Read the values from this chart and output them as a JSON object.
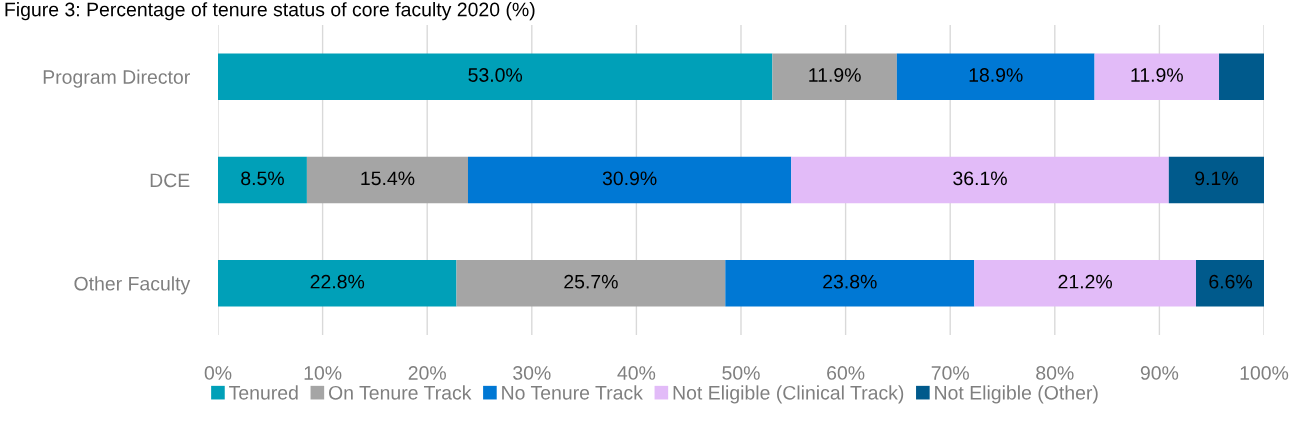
{
  "chart_data": {
    "type": "bar",
    "orientation": "horizontal",
    "stacked": true,
    "title": "Figure 3: Percentage of tenure status of core faculty 2020 (%)",
    "categories": [
      "Program Director",
      "DCE",
      "Other Faculty"
    ],
    "series": [
      {
        "name": "Tenured",
        "color": "#00a0b8",
        "values": [
          53.0,
          8.5,
          22.8
        ],
        "value_labels": [
          "53.0%",
          "8.5%",
          "22.8%"
        ]
      },
      {
        "name": "On Tenure Track",
        "color": "#a5a5a5",
        "values": [
          11.9,
          15.4,
          25.7
        ],
        "value_labels": [
          "11.9%",
          "15.4%",
          "25.7%"
        ]
      },
      {
        "name": "No Tenure Track",
        "color": "#0078d4",
        "values": [
          18.9,
          30.9,
          23.8
        ],
        "value_labels": [
          "18.9%",
          "30.9%",
          "23.8%"
        ]
      },
      {
        "name": "Not Eligible (Clinical Track)",
        "color": "#e2bbf8",
        "values": [
          11.9,
          36.1,
          21.2
        ],
        "value_labels": [
          "11.9%",
          "36.1%",
          "21.2%"
        ]
      },
      {
        "name": "Not Eligible (Other)",
        "color": "#005a8c",
        "values": [
          4.3,
          9.1,
          6.6
        ],
        "value_labels": [
          null,
          "9.1%",
          "6.6%"
        ]
      }
    ],
    "xlim": [
      0,
      100
    ],
    "xticks": [
      {
        "value": 0,
        "label": "0%"
      },
      {
        "value": 10,
        "label": "10%"
      },
      {
        "value": 20,
        "label": "20%"
      },
      {
        "value": 30,
        "label": "30%"
      },
      {
        "value": 40,
        "label": "40%"
      },
      {
        "value": 50,
        "label": "50%"
      },
      {
        "value": 60,
        "label": "60%"
      },
      {
        "value": 70,
        "label": "70%"
      },
      {
        "value": 80,
        "label": "80%"
      },
      {
        "value": 90,
        "label": "90%"
      },
      {
        "value": 100,
        "label": "100%"
      }
    ],
    "grid": "x",
    "legend": "bottom"
  }
}
